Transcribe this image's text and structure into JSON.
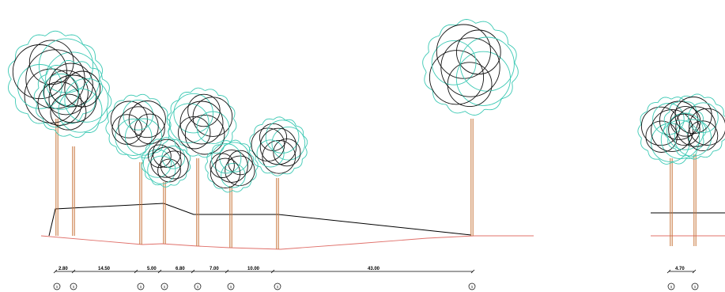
{
  "colors": {
    "background": "#ffffff",
    "canopy_teal": "#3cc9b4",
    "canopy_black": "#111111",
    "trunk": "#c8743a",
    "ground": "#e0706a",
    "line": "#000000"
  },
  "dimensions": [
    "2.80",
    "14.50",
    "5.00",
    "6.80",
    "7.00",
    "10.00",
    "43.00",
    "4.70"
  ],
  "markers": [
    "1",
    "1",
    "1",
    "1",
    "1",
    "1",
    "1",
    "1",
    "1",
    "1"
  ],
  "icons": {
    "tree": "tree-elevation-icon",
    "marker": "station-marker-icon"
  }
}
